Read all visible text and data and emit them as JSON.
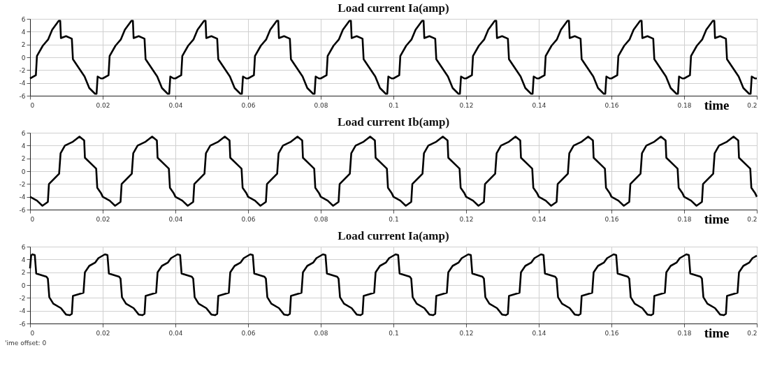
{
  "chart_data": [
    {
      "type": "line",
      "title": "Load current Ia(amp)",
      "xlabel": "time",
      "xlim": [
        0,
        0.2
      ],
      "xticks": [
        0,
        0.02,
        0.04,
        0.06,
        0.08,
        0.1,
        0.12,
        0.14,
        0.16,
        0.18,
        0.2
      ],
      "ylim": [
        -6,
        6
      ],
      "yticks": [
        -6,
        -4,
        -2,
        0,
        2,
        4,
        6
      ],
      "grid": true,
      "series": [
        {
          "color": "#000000",
          "x": [
            0,
            0.0016,
            0.0019,
            0.0035,
            0.005,
            0.0061,
            0.0079,
            0.0083,
            0.0085,
            0.0099,
            0.0115,
            0.0118,
            0.015,
            0.0163,
            0.0179,
            0.0183,
            0.0186,
            0.0195,
            0.02,
            0.0216,
            0.0219,
            0.0235,
            0.025,
            0.0261,
            0.0279,
            0.0283,
            0.0285,
            0.0299,
            0.0315,
            0.0318,
            0.035,
            0.0363,
            0.0379,
            0.0383,
            0.0386,
            0.0395,
            0.04,
            0.0416,
            0.0419,
            0.0435,
            0.045,
            0.0461,
            0.0479,
            0.0483,
            0.0485,
            0.0499,
            0.0515,
            0.0518,
            0.055,
            0.0563,
            0.0579,
            0.0583,
            0.0586,
            0.0595,
            0.06,
            0.0616,
            0.0619,
            0.0635,
            0.065,
            0.0661,
            0.0679,
            0.0683,
            0.0685,
            0.0699,
            0.0715,
            0.0718,
            0.075,
            0.0763,
            0.0779,
            0.0783,
            0.0786,
            0.0795,
            0.08,
            0.0816,
            0.0819,
            0.0835,
            0.085,
            0.0861,
            0.0879,
            0.0883,
            0.0885,
            0.0899,
            0.0915,
            0.0918,
            0.095,
            0.0963,
            0.0979,
            0.0983,
            0.0986,
            0.0995,
            0.1,
            0.1016,
            0.1019,
            0.1035,
            0.105,
            0.1061,
            0.1079,
            0.1083,
            0.1085,
            0.1099,
            0.1115,
            0.1118,
            0.115,
            0.1163,
            0.1179,
            0.1183,
            0.1186,
            0.1195,
            0.12,
            0.1216,
            0.1219,
            0.1235,
            0.125,
            0.1261,
            0.1279,
            0.1283,
            0.1285,
            0.1299,
            0.1315,
            0.1318,
            0.135,
            0.1363,
            0.1379,
            0.1383,
            0.1386,
            0.1395,
            0.14,
            0.1416,
            0.1419,
            0.1435,
            0.145,
            0.1461,
            0.1479,
            0.1483,
            0.1485,
            0.1499,
            0.1515,
            0.1518,
            0.155,
            0.1563,
            0.1579,
            0.1583,
            0.1586,
            0.1595,
            0.16,
            0.1616,
            0.1619,
            0.1635,
            0.165,
            0.1661,
            0.1679,
            0.1683,
            0.1685,
            0.1699,
            0.1715,
            0.1718,
            0.175,
            0.1763,
            0.1779,
            0.1783,
            0.1786,
            0.1795,
            0.18,
            0.1816,
            0.1819,
            0.1835,
            0.185,
            0.1861,
            0.1879,
            0.1883,
            0.1885,
            0.1899,
            0.1915,
            0.1918,
            0.195,
            0.1963,
            0.1979,
            0.1983,
            0.1986,
            0.1995,
            0.2
          ],
          "values": [
            -3.3,
            -2.8,
            0.2,
            1.8,
            2.8,
            4.3,
            5.7,
            5.7,
            3.0,
            3.3,
            2.9,
            -0.3,
            -3.0,
            -4.8,
            -5.7,
            -5.7,
            -3.0,
            -3.3,
            -3.3,
            -2.8,
            0.2,
            1.8,
            2.8,
            4.3,
            5.7,
            5.7,
            3.0,
            3.3,
            2.9,
            -0.3,
            -3.0,
            -4.8,
            -5.7,
            -5.7,
            -3.0,
            -3.3,
            -3.3,
            -2.8,
            0.2,
            1.8,
            2.8,
            4.3,
            5.7,
            5.7,
            3.0,
            3.3,
            2.9,
            -0.3,
            -3.0,
            -4.8,
            -5.7,
            -5.7,
            -3.0,
            -3.3,
            -3.3,
            -2.8,
            0.2,
            1.8,
            2.8,
            4.3,
            5.7,
            5.7,
            3.0,
            3.3,
            2.9,
            -0.3,
            -3.0,
            -4.8,
            -5.7,
            -5.7,
            -3.0,
            -3.3,
            -3.3,
            -2.8,
            0.2,
            1.8,
            2.8,
            4.3,
            5.7,
            5.7,
            3.0,
            3.3,
            2.9,
            -0.3,
            -3.0,
            -4.8,
            -5.7,
            -5.7,
            -3.0,
            -3.3,
            -3.3,
            -2.8,
            0.2,
            1.8,
            2.8,
            4.3,
            5.7,
            5.7,
            3.0,
            3.3,
            2.9,
            -0.3,
            -3.0,
            -4.8,
            -5.7,
            -5.7,
            -3.0,
            -3.3,
            -3.3,
            -2.8,
            0.2,
            1.8,
            2.8,
            4.3,
            5.7,
            5.7,
            3.0,
            3.3,
            2.9,
            -0.3,
            -3.0,
            -4.8,
            -5.7,
            -5.7,
            -3.0,
            -3.3,
            -3.3,
            -2.8,
            0.2,
            1.8,
            2.8,
            4.3,
            5.7,
            5.7,
            3.0,
            3.3,
            2.9,
            -0.3,
            -3.0,
            -4.8,
            -5.7,
            -5.7,
            -3.0,
            -3.3,
            -3.3,
            -2.8,
            0.2,
            1.8,
            2.8,
            4.3,
            5.7,
            5.7,
            3.0,
            3.3,
            2.9,
            -0.3,
            -3.0,
            -4.8,
            -5.7,
            -5.7,
            -3.0,
            -3.3,
            -3.3,
            -2.8,
            0.2,
            1.8,
            2.8,
            4.3,
            5.7,
            5.7,
            3.0,
            3.3,
            2.9,
            -0.3,
            -3.0,
            -4.8,
            -5.7,
            -5.7,
            -3.0,
            -3.3,
            -3.3
          ]
        }
      ]
    },
    {
      "type": "line",
      "title": "Load current Ib(amp)",
      "xlabel": "time",
      "xlim": [
        0,
        0.2
      ],
      "xticks": [
        0,
        0.02,
        0.04,
        0.06,
        0.08,
        0.1,
        0.12,
        0.14,
        0.16,
        0.18,
        0.2
      ],
      "ylim": [
        -6,
        6
      ],
      "yticks": [
        -6,
        -4,
        -2,
        0,
        2,
        4,
        6
      ],
      "grid": true,
      "series": [
        {
          "color": "#000000",
          "x": [
            0,
            0.0019,
            0.0034,
            0.0049,
            0.0052,
            0.008,
            0.0084,
            0.0096,
            0.0118,
            0.0136,
            0.0149,
            0.0151,
            0.0182,
            0.0185,
            0.0195,
            0.02,
            0.0219,
            0.0234,
            0.0249,
            0.0252,
            0.028,
            0.0284,
            0.0296,
            0.0318,
            0.0336,
            0.0349,
            0.0351,
            0.0382,
            0.0385,
            0.0395,
            0.04,
            0.0419,
            0.0434,
            0.0449,
            0.0452,
            0.048,
            0.0484,
            0.0496,
            0.0518,
            0.0536,
            0.0549,
            0.0551,
            0.0582,
            0.0585,
            0.0595,
            0.06,
            0.0619,
            0.0634,
            0.0649,
            0.0652,
            0.068,
            0.0684,
            0.0696,
            0.0718,
            0.0736,
            0.0749,
            0.0751,
            0.0782,
            0.0785,
            0.0795,
            0.08,
            0.0819,
            0.0834,
            0.0849,
            0.0852,
            0.088,
            0.0884,
            0.0896,
            0.0918,
            0.0936,
            0.0949,
            0.0951,
            0.0982,
            0.0985,
            0.0995,
            0.1,
            0.1019,
            0.1034,
            0.1049,
            0.1052,
            0.108,
            0.1084,
            0.1096,
            0.1118,
            0.1136,
            0.1149,
            0.1151,
            0.1182,
            0.1185,
            0.1195,
            0.12,
            0.1219,
            0.1234,
            0.1249,
            0.1252,
            0.128,
            0.1284,
            0.1296,
            0.1318,
            0.1336,
            0.1349,
            0.1351,
            0.1382,
            0.1385,
            0.1395,
            0.14,
            0.1419,
            0.1434,
            0.1449,
            0.1452,
            0.148,
            0.1484,
            0.1496,
            0.1518,
            0.1536,
            0.1549,
            0.1551,
            0.1582,
            0.1585,
            0.1595,
            0.16,
            0.1619,
            0.1634,
            0.1649,
            0.1652,
            0.168,
            0.1684,
            0.1696,
            0.1718,
            0.1736,
            0.1749,
            0.1751,
            0.1782,
            0.1785,
            0.1795,
            0.18,
            0.1819,
            0.1834,
            0.1849,
            0.1852,
            0.188,
            0.1884,
            0.1896,
            0.1918,
            0.1936,
            0.1949,
            0.1951,
            0.1982,
            0.1985,
            0.1995,
            0.2
          ],
          "values": [
            -4.0,
            -4.6,
            -5.4,
            -4.8,
            -2.0,
            -0.4,
            2.8,
            4.0,
            4.6,
            5.4,
            4.8,
            2.1,
            0.4,
            -2.6,
            -3.4,
            -4.0,
            -4.6,
            -5.4,
            -4.8,
            -2.0,
            -0.4,
            2.8,
            4.0,
            4.6,
            5.4,
            4.8,
            2.1,
            0.4,
            -2.6,
            -3.4,
            -4.0,
            -4.6,
            -5.4,
            -4.8,
            -2.0,
            -0.4,
            2.8,
            4.0,
            4.6,
            5.4,
            4.8,
            2.1,
            0.4,
            -2.6,
            -3.4,
            -4.0,
            -4.6,
            -5.4,
            -4.8,
            -2.0,
            -0.4,
            2.8,
            4.0,
            4.6,
            5.4,
            4.8,
            2.1,
            0.4,
            -2.6,
            -3.4,
            -4.0,
            -4.6,
            -5.4,
            -4.8,
            -2.0,
            -0.4,
            2.8,
            4.0,
            4.6,
            5.4,
            4.8,
            2.1,
            0.4,
            -2.6,
            -3.4,
            -4.0,
            -4.6,
            -5.4,
            -4.8,
            -2.0,
            -0.4,
            2.8,
            4.0,
            4.6,
            5.4,
            4.8,
            2.1,
            0.4,
            -2.6,
            -3.4,
            -4.0,
            -4.6,
            -5.4,
            -4.8,
            -2.0,
            -0.4,
            2.8,
            4.0,
            4.6,
            5.4,
            4.8,
            2.1,
            0.4,
            -2.6,
            -3.4,
            -4.0,
            -4.6,
            -5.4,
            -4.8,
            -2.0,
            -0.4,
            2.8,
            4.0,
            4.6,
            5.4,
            4.8,
            2.1,
            0.4,
            -2.6,
            -3.4,
            -4.0,
            -4.6,
            -5.4,
            -4.8,
            -2.0,
            -0.4,
            2.8,
            4.0,
            4.6,
            5.4,
            4.8,
            2.1,
            0.4,
            -2.6,
            -3.4,
            -4.0,
            -4.6,
            -5.4,
            -4.8,
            -2.0,
            -0.4,
            2.8,
            4.0,
            4.6,
            5.4,
            4.8,
            2.1,
            0.4,
            -2.6,
            -3.4,
            -4.0
          ]
        }
      ]
    },
    {
      "type": "line",
      "title": "Load current Ia(amp)",
      "xlabel": "time",
      "xlim": [
        0,
        0.2
      ],
      "xticks": [
        0,
        0.02,
        0.04,
        0.06,
        0.08,
        0.1,
        0.12,
        0.14,
        0.16,
        0.18,
        0.2
      ],
      "ylim": [
        -6,
        6
      ],
      "yticks": [
        -6,
        -4,
        -2,
        0,
        2,
        4,
        6
      ],
      "grid": true,
      "annotations": [
        "'ime offset:  0"
      ],
      "series": [
        {
          "color": "#000000",
          "x": [
            0,
            0.0003,
            0.0006,
            0.0013,
            0.0017,
            0.0045,
            0.0049,
            0.0053,
            0.0064,
            0.0085,
            0.0099,
            0.0109,
            0.0115,
            0.0118,
            0.0147,
            0.0151,
            0.0163,
            0.0179,
            0.0188,
            0.0206,
            0.0213,
            0.0217,
            0.0245,
            0.0249,
            0.0253,
            0.0264,
            0.0285,
            0.0299,
            0.0309,
            0.0315,
            0.0318,
            0.0347,
            0.0351,
            0.0363,
            0.0379,
            0.0388,
            0.0406,
            0.0413,
            0.0417,
            0.0445,
            0.0449,
            0.0453,
            0.0464,
            0.0485,
            0.0499,
            0.0509,
            0.0515,
            0.0518,
            0.0547,
            0.0551,
            0.0563,
            0.0579,
            0.0588,
            0.0606,
            0.0613,
            0.0617,
            0.0645,
            0.0649,
            0.0653,
            0.0664,
            0.0685,
            0.0699,
            0.0709,
            0.0715,
            0.0718,
            0.0747,
            0.0751,
            0.0763,
            0.0779,
            0.0788,
            0.0806,
            0.0813,
            0.0817,
            0.0845,
            0.0849,
            0.0853,
            0.0864,
            0.0885,
            0.0899,
            0.0909,
            0.0915,
            0.0918,
            0.0947,
            0.0951,
            0.0963,
            0.0979,
            0.0988,
            0.1006,
            0.1013,
            0.1017,
            0.1045,
            0.1049,
            0.1053,
            0.1064,
            0.1085,
            0.1099,
            0.1109,
            0.1115,
            0.1118,
            0.1147,
            0.1151,
            0.1163,
            0.1179,
            0.1188,
            0.1206,
            0.1213,
            0.1217,
            0.1245,
            0.1249,
            0.1253,
            0.1264,
            0.1285,
            0.1299,
            0.1309,
            0.1315,
            0.1318,
            0.1347,
            0.1351,
            0.1363,
            0.1379,
            0.1388,
            0.1406,
            0.1413,
            0.1417,
            0.1445,
            0.1449,
            0.1453,
            0.1464,
            0.1485,
            0.1499,
            0.1509,
            0.1515,
            0.1518,
            0.1547,
            0.1551,
            0.1563,
            0.1579,
            0.1588,
            0.1606,
            0.1613,
            0.1617,
            0.1645,
            0.1649,
            0.1653,
            0.1664,
            0.1685,
            0.1699,
            0.1709,
            0.1715,
            0.1718,
            0.1747,
            0.1751,
            0.1763,
            0.1779,
            0.1788,
            0.1806,
            0.1813,
            0.1817,
            0.1845,
            0.1849,
            0.1853,
            0.1864,
            0.1885,
            0.1899,
            0.1909,
            0.1915,
            0.1918,
            0.1947,
            0.1951,
            0.1963,
            0.1979,
            0.1988,
            0.2
          ],
          "values": [
            2.6,
            4.6,
            4.8,
            4.7,
            1.8,
            1.3,
            1.0,
            -1.9,
            -2.9,
            -3.6,
            -4.6,
            -4.7,
            -4.5,
            -1.7,
            -1.2,
            2.0,
            3.0,
            3.5,
            4.2,
            4.8,
            4.7,
            1.8,
            1.3,
            1.0,
            -1.9,
            -2.9,
            -3.6,
            -4.6,
            -4.7,
            -4.5,
            -1.7,
            -1.2,
            2.0,
            3.0,
            3.5,
            4.2,
            4.8,
            4.7,
            1.8,
            1.3,
            1.0,
            -1.9,
            -2.9,
            -3.6,
            -4.6,
            -4.7,
            -4.5,
            -1.7,
            -1.2,
            2.0,
            3.0,
            3.5,
            4.2,
            4.8,
            4.7,
            1.8,
            1.3,
            1.0,
            -1.9,
            -2.9,
            -3.6,
            -4.6,
            -4.7,
            -4.5,
            -1.7,
            -1.2,
            2.0,
            3.0,
            3.5,
            4.2,
            4.8,
            4.7,
            1.8,
            1.3,
            1.0,
            -1.9,
            -2.9,
            -3.6,
            -4.6,
            -4.7,
            -4.5,
            -1.7,
            -1.2,
            2.0,
            3.0,
            3.5,
            4.2,
            4.8,
            4.7,
            1.8,
            1.3,
            1.0,
            -1.9,
            -2.9,
            -3.6,
            -4.6,
            -4.7,
            -4.5,
            -1.7,
            -1.2,
            2.0,
            3.0,
            3.5,
            4.2,
            4.8,
            4.7,
            1.8,
            1.3,
            1.0,
            -1.9,
            -2.9,
            -3.6,
            -4.6,
            -4.7,
            -4.5,
            -1.7,
            -1.2,
            2.0,
            3.0,
            3.5,
            4.2,
            4.8,
            4.7,
            1.8,
            1.3,
            1.0,
            -1.9,
            -2.9,
            -3.6,
            -4.6,
            -4.7,
            -4.5,
            -1.7,
            -1.2,
            2.0,
            3.0,
            3.5,
            4.2,
            4.8,
            4.7,
            1.8,
            1.3,
            1.0,
            -1.9,
            -2.9,
            -3.6,
            -4.6,
            -4.7,
            -4.5,
            -1.7,
            -1.2,
            2.0,
            3.0,
            3.5,
            4.2,
            4.8,
            4.7,
            1.8,
            1.3,
            1.0,
            -1.9,
            -2.9,
            -3.6,
            -4.6,
            -4.7,
            -4.5,
            -1.7,
            -1.2,
            2.0,
            3.0,
            3.5,
            4.2,
            4.6
          ]
        }
      ]
    }
  ]
}
